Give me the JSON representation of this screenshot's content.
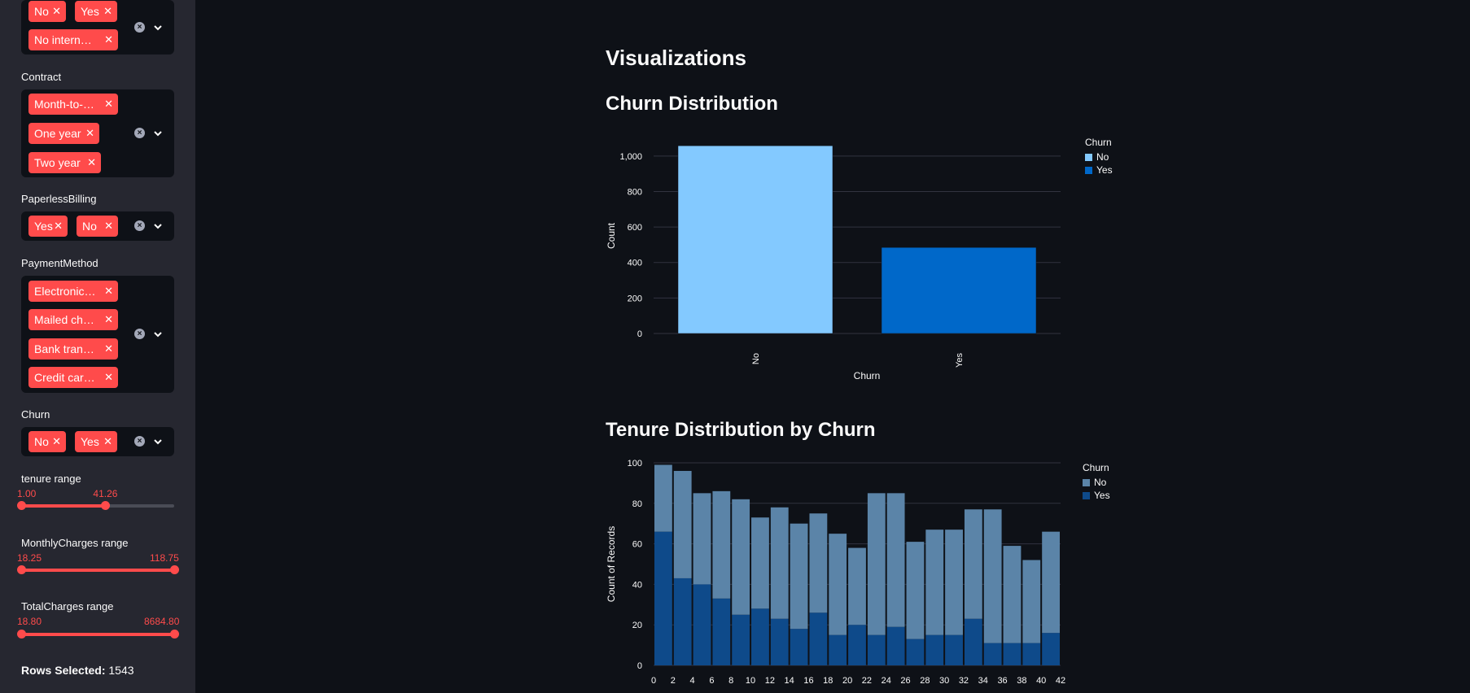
{
  "sidebar": {
    "filter_top": {
      "tags": [
        "No",
        "Yes",
        "No intern…"
      ]
    },
    "contract": {
      "label": "Contract",
      "tags": [
        "Month-to-…",
        "One year",
        "Two year"
      ]
    },
    "paperless": {
      "label": "PaperlessBilling",
      "tags": [
        "Yes",
        "No"
      ]
    },
    "payment": {
      "label": "PaymentMethod",
      "tags": [
        "Electronic…",
        "Mailed ch…",
        "Bank tran…",
        "Credit car…"
      ]
    },
    "churn": {
      "label": "Churn",
      "tags": [
        "No",
        "Yes"
      ]
    },
    "tenure": {
      "label": "tenure range",
      "min": "1.00",
      "max": "41.26",
      "low_frac": 0,
      "high_frac": 0.55
    },
    "monthly": {
      "label": "MonthlyCharges range",
      "min": "18.25",
      "max": "118.75",
      "low_frac": 0,
      "high_frac": 1
    },
    "total": {
      "label": "TotalCharges range",
      "min": "18.80",
      "max": "8684.80",
      "low_frac": 0,
      "high_frac": 1
    },
    "rows_label": "Rows Selected:",
    "rows_value": "1543"
  },
  "main": {
    "heading": "Visualizations",
    "chart1_title": "Churn Distribution",
    "chart2_title": "Tenure Distribution by Churn"
  },
  "colors": {
    "accent": "#ff4b4b",
    "no_light": "#83c9ff",
    "yes_dark": "#0068c9",
    "stack_no": "#5b84a8",
    "stack_yes": "#0e4a8a"
  },
  "chart_data": [
    {
      "type": "bar",
      "categories": [
        "No",
        "Yes"
      ],
      "values": [
        1058,
        485
      ],
      "xlabel": "Churn",
      "ylabel": "Count",
      "ylim": [
        0,
        1100
      ],
      "yticks": [
        0,
        200,
        400,
        600,
        800,
        1000
      ],
      "ytick_labels": [
        "0",
        "200",
        "400",
        "600",
        "800",
        "1,000"
      ],
      "legend": {
        "title": "Churn",
        "entries": [
          "No",
          "Yes"
        ],
        "placement": "right"
      }
    },
    {
      "type": "bar",
      "stacked": true,
      "x": [
        1,
        3,
        5,
        7,
        9,
        11,
        13,
        15,
        17,
        19,
        21,
        23,
        25,
        27,
        29,
        31,
        33,
        35,
        37,
        39,
        41
      ],
      "xticks": [
        0,
        2,
        4,
        6,
        8,
        10,
        12,
        14,
        16,
        18,
        20,
        22,
        24,
        26,
        28,
        30,
        32,
        34,
        36,
        38,
        40,
        42
      ],
      "series": [
        {
          "name": "Yes",
          "values": [
            66,
            43,
            40,
            33,
            25,
            28,
            23,
            18,
            26,
            15,
            20,
            15,
            19,
            13,
            15,
            15,
            23,
            11,
            11,
            11,
            16
          ]
        },
        {
          "name": "No",
          "values": [
            33,
            53,
            45,
            53,
            57,
            45,
            55,
            52,
            49,
            50,
            38,
            70,
            66,
            48,
            52,
            52,
            54,
            66,
            48,
            41,
            50
          ]
        }
      ],
      "xlabel": "",
      "ylabel": "Count of Records",
      "ylim": [
        0,
        100
      ],
      "yticks": [
        0,
        20,
        40,
        60,
        80,
        100
      ],
      "legend": {
        "title": "Churn",
        "entries": [
          "No",
          "Yes"
        ],
        "placement": "right"
      }
    }
  ]
}
